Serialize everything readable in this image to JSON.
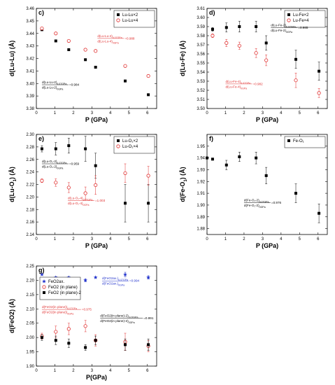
{
  "colors": {
    "black": "#000000",
    "red": "#e03030",
    "blue": "#2233cc"
  },
  "chart_data": [
    {
      "panel": "c)",
      "type": "scatter",
      "xlabel": "P (GPa)",
      "ylabel": "d(Lu-Lu) (Å)",
      "xlim": [
        0,
        6.5
      ],
      "ylim": [
        3.38,
        3.46
      ],
      "xticks": [
        0,
        1,
        2,
        3,
        4,
        5,
        6
      ],
      "yticks": [
        3.38,
        3.39,
        3.4,
        3.41,
        3.42,
        3.43,
        3.44,
        3.45,
        3.46
      ],
      "ytick_decimals": 2,
      "legend_position": "top-right",
      "series": [
        {
          "name": "Lu-Lu×2",
          "color": "#000000",
          "marker": "filled-square",
          "x": [
            0.3,
            1.05,
            1.75,
            2.65,
            3.2,
            4.8,
            6.05
          ],
          "y": [
            3.443,
            3.434,
            3.427,
            3.419,
            3.413,
            3.402,
            3.391
          ]
        },
        {
          "name": "Lu-Lu×4",
          "color": "#e03030",
          "marker": "open-circle",
          "x": [
            0.3,
            1.05,
            1.75,
            2.65,
            3.2,
            4.8,
            6.05
          ],
          "y": [
            3.444,
            3.44,
            3.434,
            3.427,
            3.426,
            3.414,
            3.406
          ]
        }
      ],
      "annotations": [
        {
          "num": "d(Lu-Lu-4)",
          "num_sub": "6.07GPa",
          "den": "d(Lu-Lu-4)",
          "den_sub": "0GPa",
          "value": "=0.988",
          "color": "#e03030",
          "x": 3.3,
          "y": 3.436
        },
        {
          "num": "d(Lu-Lu-2)",
          "num_sub": "6.07GPa",
          "den": "d(Lu-Lu-2)",
          "den_sub": "0GPa",
          "value": "=0.984",
          "color": "#000000",
          "x": 0.3,
          "y": 3.399
        }
      ]
    },
    {
      "panel": "d)",
      "type": "scatter",
      "xlabel": "P (GPa)",
      "ylabel": "d(Lu-Fe) (Å)",
      "xlim": [
        0,
        6.5
      ],
      "ylim": [
        3.5,
        3.61
      ],
      "xticks": [
        0,
        1,
        2,
        3,
        4,
        5,
        6
      ],
      "yticks": [
        3.5,
        3.51,
        3.52,
        3.53,
        3.54,
        3.55,
        3.56,
        3.57,
        3.58,
        3.59,
        3.6,
        3.61
      ],
      "ytick_decimals": 2,
      "legend_position": "top-right",
      "series": [
        {
          "name": "Lu-Fe×2",
          "color": "#000000",
          "marker": "filled-square",
          "x": [
            0.3,
            1.05,
            1.75,
            2.65,
            3.2,
            4.8,
            6.05
          ],
          "y": [
            3.587,
            3.589,
            3.59,
            3.59,
            3.572,
            3.554,
            3.541
          ],
          "err": [
            0.002,
            0.005,
            0.006,
            0.006,
            0.008,
            0.01,
            0.01
          ]
        },
        {
          "name": "Lu-Fe×4",
          "color": "#e03030",
          "marker": "open-circle",
          "x": [
            0.3,
            1.05,
            1.75,
            2.65,
            3.2,
            4.8,
            6.05
          ],
          "y": [
            3.58,
            3.572,
            3.569,
            3.561,
            3.553,
            3.531,
            3.517
          ],
          "err": [
            0.002,
            0.004,
            0.004,
            0.005,
            0.006,
            0.008,
            0.005
          ]
        }
      ],
      "annotations": [
        {
          "num": "d(Lu-Fe-2)",
          "num_sub": "6.07GPa",
          "den": "d(Lu-Fe-2)",
          "den_sub": "0GPa",
          "value": "=0.985",
          "color": "#000000",
          "x": 3.45,
          "y": 3.589
        },
        {
          "num": "d(Lu-Fe-4)",
          "num_sub": "6.07GPa",
          "den": "d(Lu-Fe-4)",
          "den_sub": "0GPa",
          "value": "=0.982",
          "color": "#e03030",
          "x": 1.0,
          "y": 3.527
        }
      ]
    },
    {
      "panel": "e)",
      "type": "scatter",
      "xlabel": "P (GPa)",
      "ylabel": "d(Lu-O",
      "ylabel_sub": "1",
      "ylabel_tail": ") (Å)",
      "xlim": [
        0,
        6.5
      ],
      "ylim": [
        2.14,
        2.3
      ],
      "xticks": [
        0,
        1,
        2,
        3,
        4,
        5,
        6
      ],
      "yticks": [
        2.14,
        2.16,
        2.18,
        2.2,
        2.22,
        2.24,
        2.26,
        2.28,
        2.3
      ],
      "ytick_decimals": 2,
      "legend_position": "top-right",
      "series": [
        {
          "name": "Lu-O₁×2",
          "color": "#000000",
          "marker": "filled-square",
          "x": [
            0.3,
            1.05,
            1.75,
            2.65,
            3.2,
            4.8,
            6.05
          ],
          "y": [
            2.277,
            2.277,
            2.282,
            2.277,
            2.25,
            2.19,
            2.19
          ],
          "err": [
            0.005,
            0.01,
            0.012,
            0.02,
            0.02,
            0.03,
            0.03
          ]
        },
        {
          "name": "Lu-O₁×4",
          "color": "#e03030",
          "marker": "open-circle",
          "x": [
            0.3,
            1.05,
            1.75,
            2.65,
            3.2,
            4.8,
            6.05
          ],
          "y": [
            2.226,
            2.223,
            2.215,
            2.206,
            2.219,
            2.238,
            2.234
          ],
          "err": [
            0.003,
            0.006,
            0.008,
            0.01,
            0.015,
            0.015,
            0.015
          ]
        }
      ],
      "annotations": [
        {
          "num": "d(Lu-O₁-2)",
          "num_sub": "6.07GPa",
          "den": "d(Lu-O₁-2)",
          "den_sub": "0GPa",
          "value": "=0.959",
          "color": "#000000",
          "x": 0.3,
          "y": 2.253
        },
        {
          "num": "d(Lu-O₁-4)",
          "num_sub": "6.07GPa",
          "den": "d(Lu-O₁-4)",
          "den_sub": "0GPa",
          "value": "=1.003",
          "color": "#e03030",
          "x": 1.7,
          "y": 2.194
        }
      ]
    },
    {
      "panel": "f)",
      "type": "scatter",
      "xlabel": "P (GPa)",
      "ylabel": "d(Fe-O",
      "ylabel_sub": "1",
      "ylabel_tail": ") (Å)",
      "xlim": [
        0,
        6.5
      ],
      "ylim": [
        1.875,
        1.96
      ],
      "xticks": [
        0,
        1,
        2,
        3,
        4,
        5,
        6
      ],
      "yticks": [
        1.88,
        1.89,
        1.9,
        1.91,
        1.92,
        1.93,
        1.94,
        1.95
      ],
      "ytick_decimals": 2,
      "legend_position": "top-right",
      "series": [
        {
          "name": "Fe-O₁",
          "color": "#000000",
          "marker": "filled-square",
          "x": [
            0.0,
            0.3,
            1.05,
            1.75,
            2.65,
            3.2,
            4.8,
            6.05
          ],
          "y": [
            1.94,
            1.939,
            1.934,
            1.941,
            1.94,
            1.925,
            1.91,
            1.893
          ],
          "err": [
            0,
            0,
            0.004,
            0.004,
            0.005,
            0.007,
            0.008,
            0.008
          ]
        }
      ],
      "annotations": [
        {
          "num": "d(Fe-O₁-2)",
          "num_sub": "6.07GPa",
          "den": "d(Fe-O₁-2)",
          "den_sub": "0GPa",
          "value": "=0.976",
          "color": "#000000",
          "x": 2.0,
          "y": 1.902
        }
      ]
    },
    {
      "panel": "g)",
      "type": "scatter",
      "xlabel": "P(GPa)",
      "ylabel": "d(FeO2) (Å)",
      "xlim": [
        0,
        6.5
      ],
      "ylim": [
        1.9,
        2.25
      ],
      "xticks": [
        0,
        1,
        2,
        3,
        4,
        5,
        6
      ],
      "yticks": [
        1.9,
        1.95,
        2.0,
        2.05,
        2.1,
        2.15,
        2.2,
        2.25
      ],
      "ytick_decimals": 2,
      "legend_position": "top-left",
      "series": [
        {
          "name": "FeO2ax.",
          "color": "#2233cc",
          "marker": "star",
          "x": [
            0.3,
            1.05,
            1.75,
            2.65,
            3.2,
            4.8,
            6.05
          ],
          "y": [
            2.22,
            2.21,
            2.21,
            2.2,
            2.21,
            2.22,
            2.21
          ],
          "err": [
            0,
            0,
            0,
            0.005,
            0,
            0.008,
            0.006
          ]
        },
        {
          "name": "FeO2 (in plane)",
          "color": "#e03030",
          "marker": "open-circle",
          "x": [
            0.3,
            1.05,
            1.75,
            2.65,
            3.2,
            4.8,
            6.05
          ],
          "y": [
            2.005,
            2.02,
            2.03,
            2.04,
            1.99,
            1.985,
            1.97
          ],
          "err": [
            0.01,
            0.02,
            0.02,
            0.02,
            0.02,
            0.03,
            0.02
          ]
        },
        {
          "name": "FeO2 (in plane)-2",
          "color": "#000000",
          "marker": "filled-square",
          "x": [
            0.3,
            1.05,
            1.75,
            2.65,
            3.2,
            4.8,
            6.05
          ],
          "y": [
            2.0,
            1.99,
            1.98,
            1.965,
            1.99,
            1.975,
            1.975
          ],
          "err": [
            0.01,
            0.015,
            0.015,
            0.01,
            0.015,
            0.02,
            0.02
          ]
        }
      ],
      "annotations": [
        {
          "num": "d(FeO2ax.)",
          "num_sub": "6.07GPa",
          "den": "d(FeO2ax.)",
          "den_sub": "0GPa",
          "value": "=0.994",
          "color": "#2233cc",
          "x": 3.55,
          "y": 2.198
        },
        {
          "num": "d(FeO2(in plane))",
          "num_sub": "6.07GPa",
          "den": "d(FeO2(in plane))",
          "den_sub": "0GPa",
          "value": "=0.975",
          "color": "#e03030",
          "x": 0.3,
          "y": 2.098
        },
        {
          "num": "d(FeO2(in plane)-2)",
          "num_sub": "6.07GPa",
          "den": "d(FeO2(in plane)-2)",
          "den_sub": "0GPa",
          "value": "=0.991",
          "color": "#000000",
          "x": 3.45,
          "y": 2.068
        }
      ]
    }
  ]
}
